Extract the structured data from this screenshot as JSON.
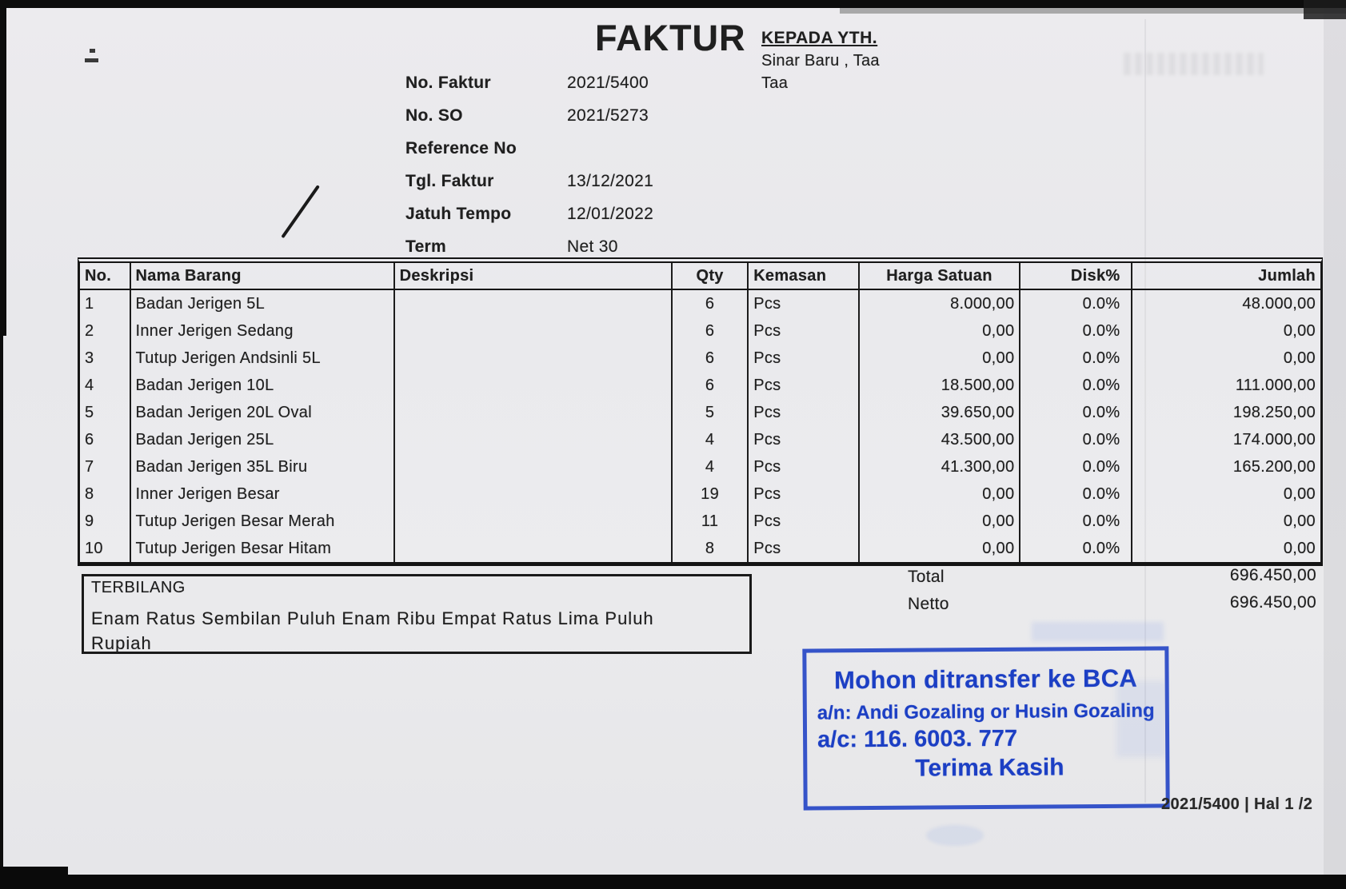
{
  "page": {
    "paper_color": "#e9e9ec",
    "ink_color": "#1f1f1f",
    "stamp_color": "#1c3fc4"
  },
  "invoice": {
    "title": "FAKTUR",
    "recipient": {
      "label": "KEPADA YTH.",
      "line1": "Sinar Baru , Taa",
      "line2": "Taa"
    },
    "meta": [
      {
        "label": "No. Faktur",
        "value": "2021/5400"
      },
      {
        "label": "No. SO",
        "value": "2021/5273"
      },
      {
        "label": "Reference No",
        "value": ""
      },
      {
        "label": "Tgl. Faktur",
        "value": "13/12/2021"
      },
      {
        "label": "Jatuh Tempo",
        "value": "12/01/2022"
      },
      {
        "label": "Term",
        "value": "Net 30"
      }
    ],
    "items_table": {
      "headers": [
        "No.",
        "Nama Barang",
        "Deskripsi",
        "Qty",
        "Kemasan",
        "Harga Satuan",
        "Disk%",
        "Jumlah"
      ],
      "rows": [
        [
          "1",
          "Badan Jerigen 5L",
          "",
          "6",
          "Pcs",
          "8.000,00",
          "0.0%",
          "48.000,00"
        ],
        [
          "2",
          "Inner Jerigen Sedang",
          "",
          "6",
          "Pcs",
          "0,00",
          "0.0%",
          "0,00"
        ],
        [
          "3",
          "Tutup Jerigen Andsinli 5L",
          "",
          "6",
          "Pcs",
          "0,00",
          "0.0%",
          "0,00"
        ],
        [
          "4",
          "Badan Jerigen 10L",
          "",
          "6",
          "Pcs",
          "18.500,00",
          "0.0%",
          "111.000,00"
        ],
        [
          "5",
          "Badan Jerigen 20L Oval",
          "",
          "5",
          "Pcs",
          "39.650,00",
          "0.0%",
          "198.250,00"
        ],
        [
          "6",
          "Badan Jerigen 25L",
          "",
          "4",
          "Pcs",
          "43.500,00",
          "0.0%",
          "174.000,00"
        ],
        [
          "7",
          "Badan Jerigen 35L Biru",
          "",
          "4",
          "Pcs",
          "41.300,00",
          "0.0%",
          "165.200,00"
        ],
        [
          "8",
          "Inner Jerigen Besar",
          "",
          "19",
          "Pcs",
          "0,00",
          "0.0%",
          "0,00"
        ],
        [
          "9",
          "Tutup Jerigen Besar Merah",
          "",
          "11",
          "Pcs",
          "0,00",
          "0.0%",
          "0,00"
        ],
        [
          "10",
          "Tutup Jerigen Besar Hitam",
          "",
          "8",
          "Pcs",
          "0,00",
          "0.0%",
          "0,00"
        ]
      ]
    },
    "summary": [
      {
        "label": "Total",
        "value": "696.450,00"
      },
      {
        "label": "Netto",
        "value": "696.450,00"
      }
    ],
    "terbilang": {
      "label": "TERBILANG",
      "text": "Enam Ratus Sembilan Puluh Enam Ribu Empat Ratus Lima Puluh Rupiah"
    },
    "payment_stamp": {
      "line1": "Mohon ditransfer ke BCA",
      "line2": "a/n: Andi Gozaling or Husin Gozaling",
      "line3": "a/c: 116. 6003. 777",
      "line4": "Terima Kasih"
    },
    "page_footer": "2021/5400 | Hal 1 /2"
  }
}
